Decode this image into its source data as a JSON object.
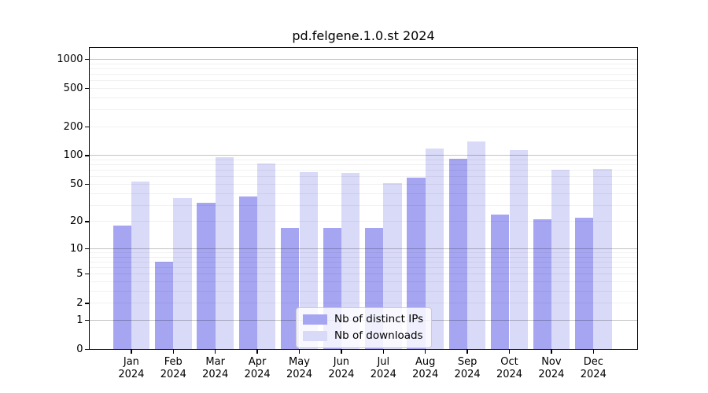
{
  "title": "pd.felgene.1.0.st 2024",
  "colors": {
    "ips": "#a5a5f1",
    "downloads": "#d9d9f8",
    "grid_major": "#c2c2c2",
    "grid_minor": "#ececec",
    "frame": "#000000"
  },
  "legend": {
    "items": [
      {
        "label": "Nb of distinct IPs",
        "color_key": "ips"
      },
      {
        "label": "Nb of downloads",
        "color_key": "downloads"
      }
    ]
  },
  "y_axis": {
    "ticks": [
      0,
      1,
      2,
      5,
      10,
      20,
      50,
      100,
      200,
      500,
      1000
    ]
  },
  "x_axis": {
    "months": [
      "Jan",
      "Feb",
      "Mar",
      "Apr",
      "May",
      "Jun",
      "Jul",
      "Aug",
      "Sep",
      "Oct",
      "Nov",
      "Dec"
    ],
    "year": "2024"
  },
  "chart_data": {
    "type": "bar",
    "title": "pd.felgene.1.0.st 2024",
    "categories": [
      "Jan 2024",
      "Feb 2024",
      "Mar 2024",
      "Apr 2024",
      "May 2024",
      "Jun 2024",
      "Jul 2024",
      "Aug 2024",
      "Sep 2024",
      "Oct 2024",
      "Nov 2024",
      "Dec 2024"
    ],
    "series": [
      {
        "name": "Nb of distinct IPs",
        "values": [
          18,
          7,
          32,
          37,
          17,
          17,
          17,
          59,
          92,
          24,
          21,
          22
        ]
      },
      {
        "name": "Nb of downloads",
        "values": [
          53,
          36,
          96,
          83,
          67,
          66,
          51,
          118,
          140,
          115,
          71,
          72
        ]
      }
    ],
    "xlabel": "",
    "ylabel": "",
    "y_scale": "log10(value+1)",
    "y_ticks": [
      0,
      1,
      2,
      5,
      10,
      20,
      50,
      100,
      200,
      500,
      1000
    ],
    "ylim": [
      0,
      1300
    ],
    "grid": true,
    "legend_position": "lower center"
  }
}
